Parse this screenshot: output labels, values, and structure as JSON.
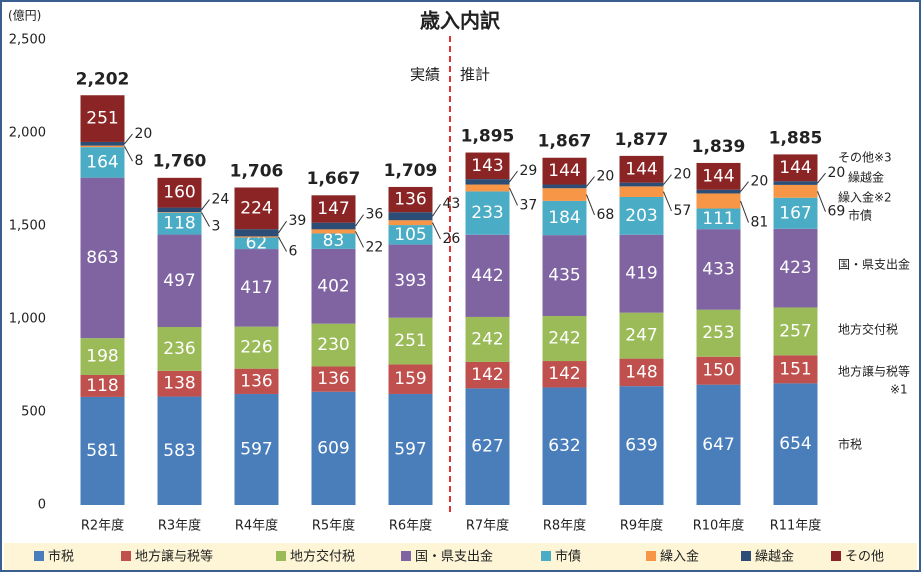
{
  "chart_data": {
    "type": "stacked_bar",
    "title": "歳入内訳",
    "y_axis_label": "(億円)",
    "annotations": [
      "実績",
      "推計"
    ],
    "categories": [
      "R2年度",
      "R3年度",
      "R4年度",
      "R5年度",
      "R6年度",
      "R7年度",
      "R8年度",
      "R9年度",
      "R10年度",
      "R11年度"
    ],
    "series": [
      {
        "name": "市税",
        "color": "#4a7ebb",
        "values": [
          581,
          583,
          597,
          609,
          597,
          627,
          632,
          639,
          647,
          654
        ]
      },
      {
        "name": "地方譲与税等",
        "color": "#c0504d",
        "values": [
          118,
          138,
          136,
          136,
          159,
          142,
          142,
          148,
          150,
          151
        ]
      },
      {
        "name": "地方交付税",
        "color": "#9bbb59",
        "values": [
          198,
          236,
          226,
          230,
          251,
          242,
          242,
          247,
          253,
          257
        ]
      },
      {
        "name": "国・県支出金",
        "color": "#8064a2",
        "values": [
          863,
          497,
          417,
          402,
          393,
          442,
          435,
          419,
          433,
          423
        ]
      },
      {
        "name": "市債",
        "color": "#4bacc6",
        "values": [
          164,
          118,
          62,
          83,
          105,
          233,
          184,
          203,
          111,
          167
        ]
      },
      {
        "name": "繰入金",
        "color": "#f79646",
        "values": [
          8,
          3,
          6,
          22,
          26,
          37,
          68,
          57,
          81,
          69
        ]
      },
      {
        "name": "繰越金",
        "color": "#2c4d75",
        "values": [
          20,
          24,
          39,
          36,
          43,
          29,
          20,
          20,
          20,
          20
        ]
      },
      {
        "name": "その他",
        "color": "#8b2525",
        "values": [
          251,
          160,
          224,
          147,
          136,
          143,
          144,
          144,
          144,
          144
        ]
      }
    ],
    "totals": [
      2202,
      1760,
      1706,
      1667,
      1709,
      1895,
      1867,
      1877,
      1839,
      1885
    ],
    "total_labels": [
      "2,202",
      "1,760",
      "1,706",
      "1,667",
      "1,709",
      "1,895",
      "1,867",
      "1,877",
      "1,839",
      "1,885"
    ],
    "side_labels": [
      "その他※3",
      "繰越金",
      "繰入金※2",
      "市債",
      "国・県支出金",
      "地方交付税",
      "地方譲与税等",
      "※1",
      "市税"
    ],
    "ylim": [
      0,
      2500
    ],
    "yticks": [
      0,
      500,
      {
        "value": 1000,
        "label": "1,000"
      },
      {
        "value": 1500,
        "label": "1,500"
      },
      {
        "value": 2000,
        "label": "2,000"
      },
      {
        "value": 2500,
        "label": "2,500"
      }
    ],
    "grid": false
  }
}
